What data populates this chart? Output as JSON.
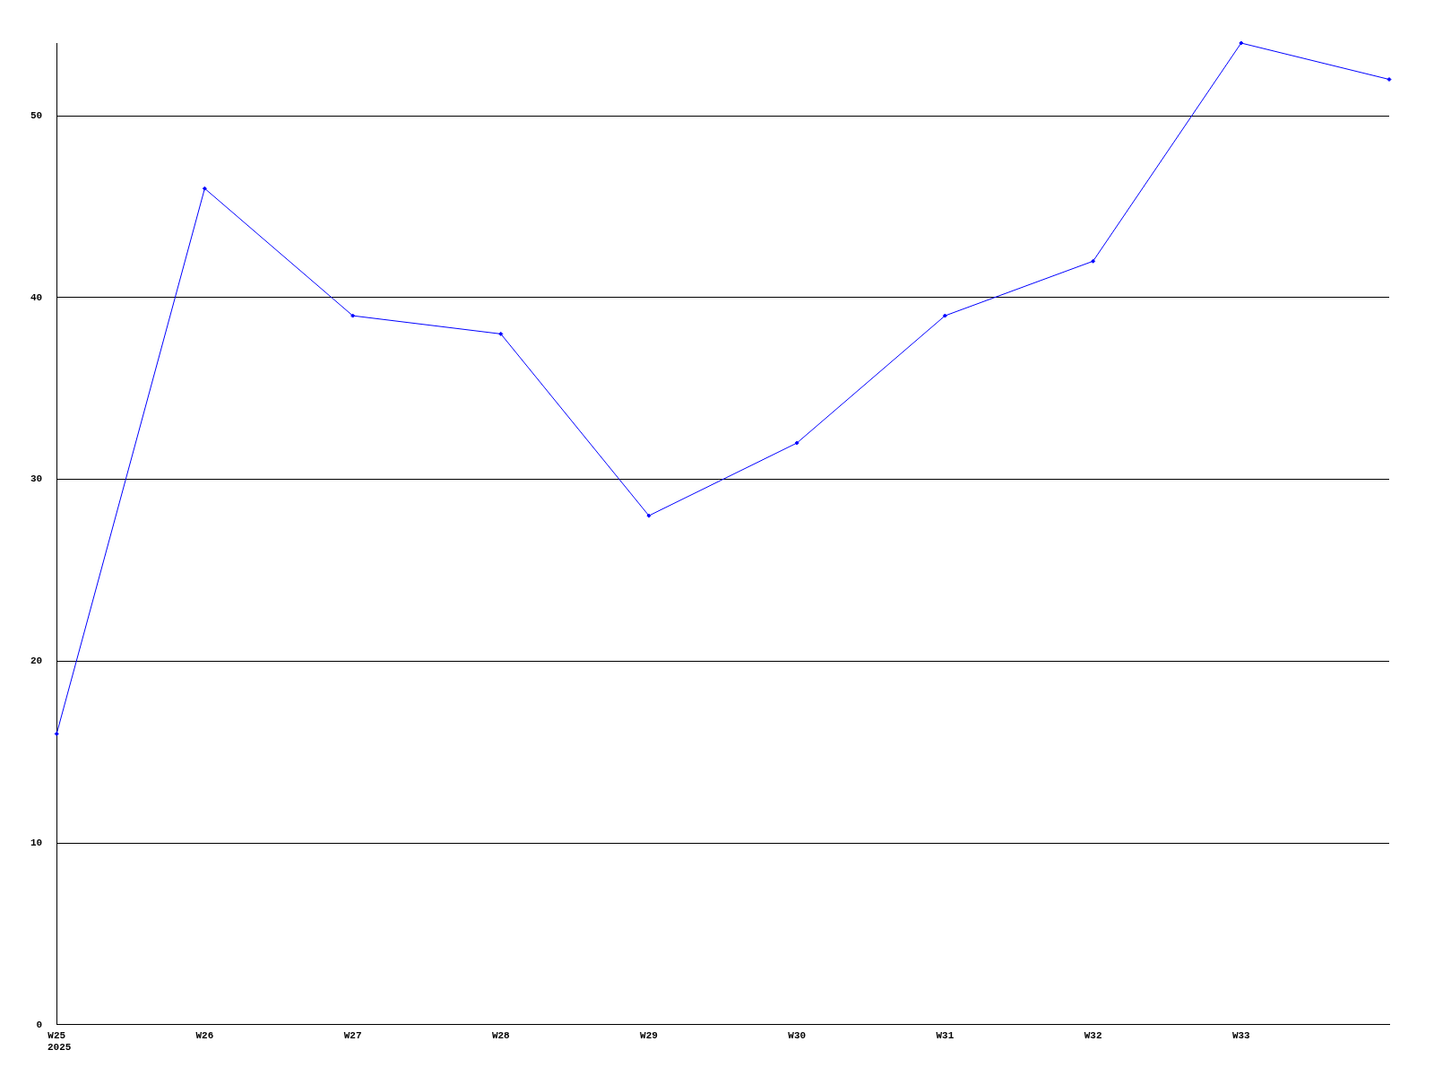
{
  "chart_data": {
    "type": "line",
    "categories": [
      "W25",
      "W26",
      "W27",
      "W28",
      "W29",
      "W30",
      "W31",
      "W32",
      "W33",
      null
    ],
    "series": [
      {
        "color": "#0000ff",
        "values": [
          16,
          46,
          39,
          38,
          28,
          32,
          39,
          42,
          54,
          52
        ]
      }
    ],
    "ylim": [
      0,
      54
    ],
    "yticks": [
      0,
      10,
      20,
      30,
      40,
      50
    ],
    "grid": "y",
    "legend": false,
    "marker": "diamond",
    "line_style": "solid",
    "annotations": [
      "2025"
    ]
  }
}
